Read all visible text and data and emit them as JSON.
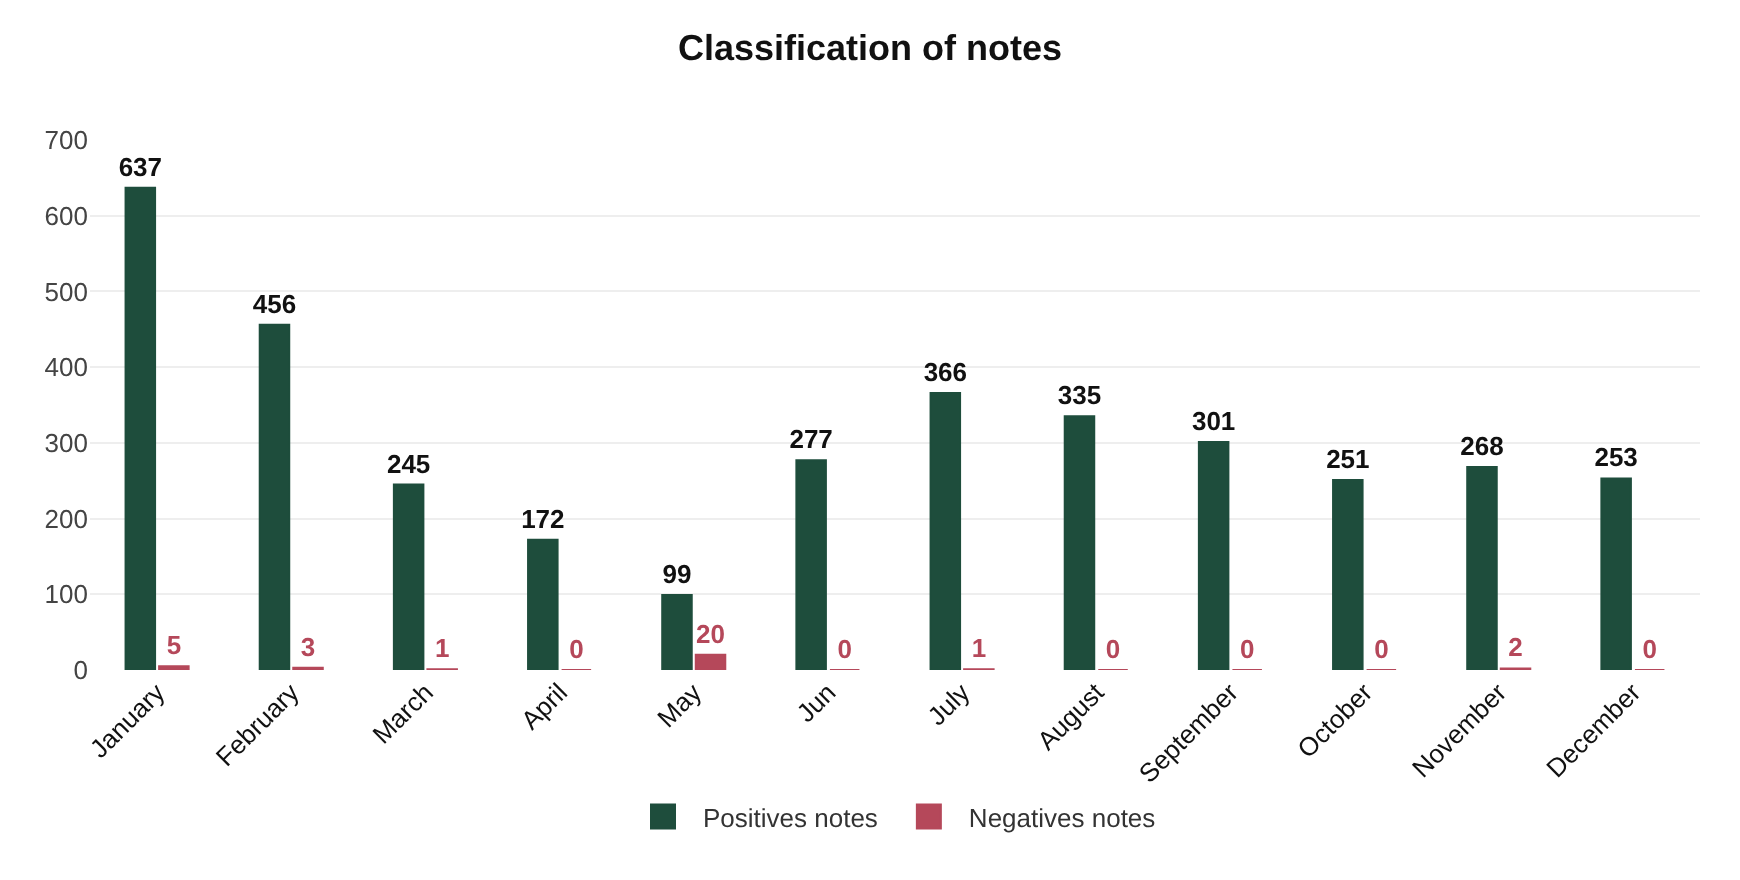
{
  "chart_data": {
    "type": "bar",
    "title": "Classification of notes",
    "categories": [
      "January",
      "February",
      "March",
      "April",
      "May",
      "Jun",
      "July",
      "August",
      "September",
      "October",
      "November",
      "December"
    ],
    "series": [
      {
        "name": "Positives notes",
        "color": "#1e4d3c",
        "values": [
          637,
          456,
          245,
          172,
          99,
          277,
          366,
          335,
          301,
          251,
          268,
          253
        ]
      },
      {
        "name": "Negatives notes",
        "color": "#b5485a",
        "values": [
          5,
          3,
          1,
          0,
          20,
          0,
          1,
          0,
          0,
          0,
          2,
          0
        ]
      }
    ],
    "ylim": [
      0,
      700
    ],
    "yticks": [
      0,
      100,
      200,
      300,
      400,
      500,
      600,
      700
    ],
    "grid": "y",
    "legend": "bottom",
    "data_labels": true
  }
}
